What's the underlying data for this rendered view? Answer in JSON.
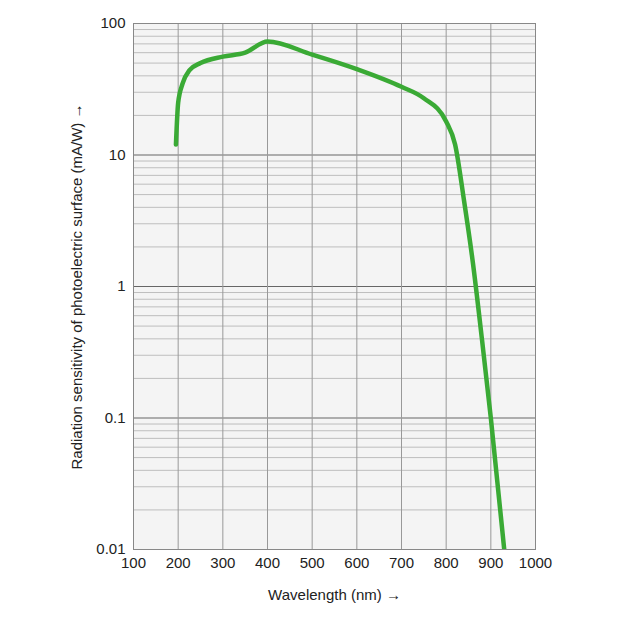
{
  "chart_data": {
    "type": "line",
    "x_label": "Wavelength (nm)",
    "y_label": "Radiation sensitivity of photoelectric surface (mA/W)",
    "x": [
      195,
      200,
      210,
      225,
      250,
      300,
      350,
      400,
      500,
      600,
      700,
      750,
      800,
      820,
      840,
      860,
      880,
      900,
      930
    ],
    "values": [
      12,
      25,
      35,
      44,
      50,
      56,
      60,
      73,
      58,
      45,
      33,
      27,
      18,
      12,
      4.5,
      1.5,
      0.4,
      0.1,
      0.01
    ],
    "color": "#3aaa35",
    "xlim": [
      100,
      1000
    ],
    "xticks": [
      100,
      200,
      300,
      400,
      500,
      600,
      700,
      800,
      900,
      1000
    ],
    "ylim": [
      0.01,
      100
    ],
    "yticks": [
      0.01,
      0.1,
      1,
      10,
      100
    ],
    "log": "y",
    "grid": true
  }
}
